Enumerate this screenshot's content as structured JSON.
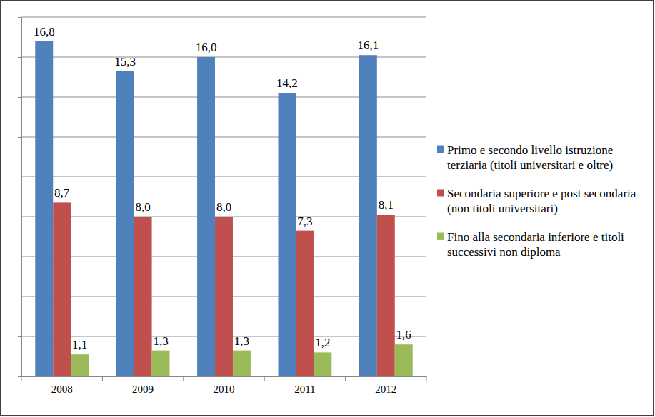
{
  "chart_data": {
    "type": "bar",
    "categories": [
      "2008",
      "2009",
      "2010",
      "2011",
      "2012"
    ],
    "series": [
      {
        "name": "Primo e secondo livello istruzione terziaria (titoli universitari e oltre)",
        "color": "#4f81bd",
        "values": [
          16.8,
          15.3,
          16.0,
          14.2,
          16.1
        ],
        "value_labels": [
          "16,8",
          "15,3",
          "16,0",
          "14,2",
          "16,1"
        ]
      },
      {
        "name": "Secondaria superiore e post secondaria (non titoli universitari)",
        "color": "#c0504d",
        "values": [
          8.7,
          8.0,
          8.0,
          7.3,
          8.1
        ],
        "value_labels": [
          "8,7",
          "8,0",
          "8,0",
          "7,3",
          "8,1"
        ]
      },
      {
        "name": "Fino alla secondaria inferiore e titoli successivi non diploma",
        "color": "#9bbb59",
        "values": [
          1.1,
          1.3,
          1.3,
          1.2,
          1.6
        ],
        "value_labels": [
          "1,1",
          "1,3",
          "1,3",
          "1,2",
          "1,6"
        ]
      }
    ],
    "ylim": [
      0,
      18
    ],
    "yticks": [
      0,
      2,
      4,
      6,
      8,
      10,
      12,
      14,
      16,
      18
    ],
    "grid": true,
    "legend": "right",
    "data_labels": true,
    "tick_labels": "x"
  }
}
